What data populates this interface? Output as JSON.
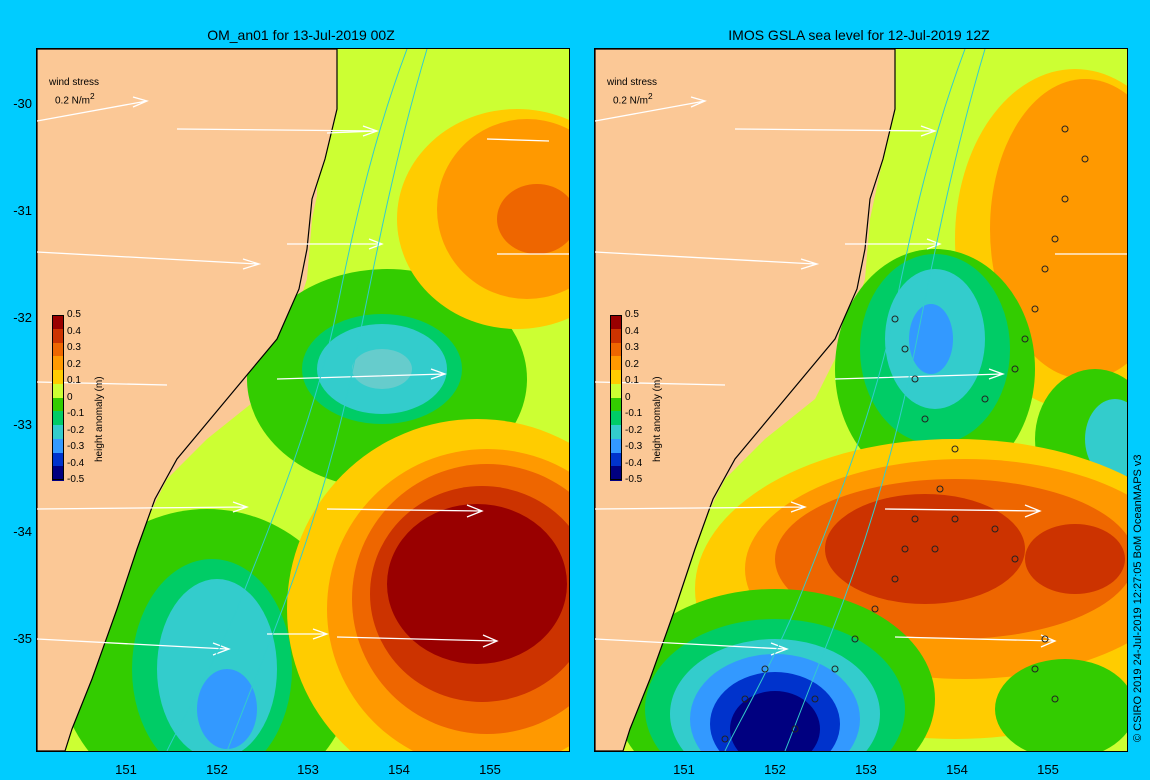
{
  "panels": [
    {
      "title": "OM_an01 for 13-Jul-2019 00Z",
      "wind_legend": {
        "label": "wind stress",
        "value": "0.2 N/m",
        "unit_sup": "2"
      },
      "features": [
        {
          "type": "low",
          "name": "eddy-low-north",
          "lon": 154.0,
          "lat": -32.4,
          "value": -0.25
        },
        {
          "type": "high",
          "name": "eddy-high-south",
          "lon": 154.6,
          "lat": -34.5,
          "value": 0.6
        },
        {
          "type": "high",
          "name": "eddy-high-north",
          "lon": 155.2,
          "lat": -31.0,
          "value": 0.35
        },
        {
          "type": "low",
          "name": "eddy-low-south",
          "lon": 152.2,
          "lat": -35.0,
          "value": -0.25
        }
      ]
    },
    {
      "title": "IMOS GSLA sea level  for 12-Jul-2019 12Z",
      "wind_legend": {
        "label": "wind stress",
        "value": "0.2 N/m",
        "unit_sup": "2"
      },
      "features": [
        {
          "type": "low",
          "name": "eddy-low-north",
          "lon": 153.8,
          "lat": -32.2,
          "value": -0.25
        },
        {
          "type": "high",
          "name": "eddy-high-center",
          "lon": 154.0,
          "lat": -34.0,
          "value": 0.45
        },
        {
          "type": "low",
          "name": "eddy-low-south",
          "lon": 151.8,
          "lat": -35.8,
          "value": -0.5
        },
        {
          "type": "high",
          "name": "eddy-high-north",
          "lon": 155.0,
          "lat": -31.0,
          "value": 0.3
        }
      ]
    }
  ],
  "axes": {
    "lat_ticks": [
      "-30",
      "-31",
      "-32",
      "-33",
      "-34",
      "-35"
    ],
    "lon_ticks": [
      "151",
      "152",
      "153",
      "154",
      "155"
    ]
  },
  "colorbar": {
    "label": "height anomaly (m)",
    "ticks": [
      "0.5",
      "0.4",
      "0.3",
      "0.2",
      "0.1",
      "0",
      "-0.1",
      "-0.2",
      "-0.3",
      "-0.4",
      "-0.5"
    ],
    "colors": [
      "#990000",
      "#cc3300",
      "#ee6600",
      "#ff9900",
      "#ffcc00",
      "#ccff33",
      "#33cc00",
      "#00cc66",
      "#33cccc",
      "#3399ff",
      "#0033cc",
      "#000080"
    ]
  },
  "credit": "© CSIRO 2019   24-Jul-2019 12:27:05 BoM OceanMAPS v3"
}
